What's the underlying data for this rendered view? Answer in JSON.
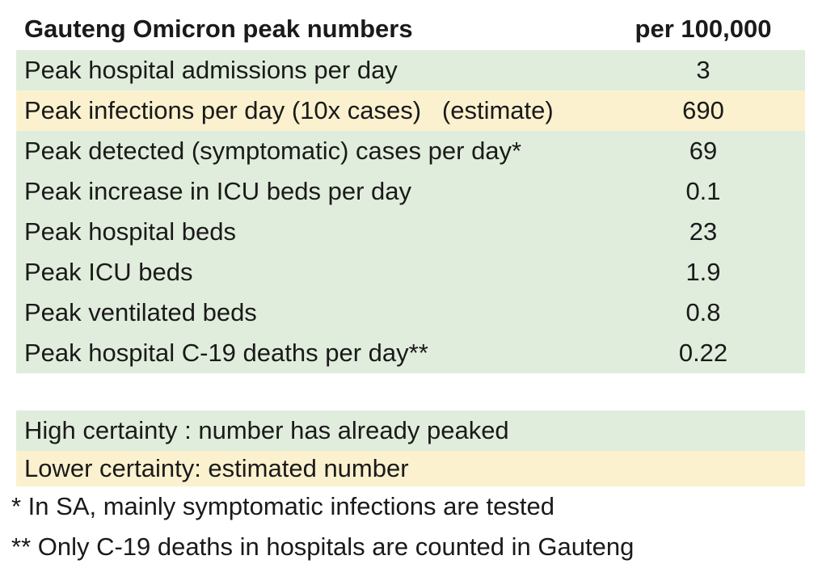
{
  "colors": {
    "row_green": "#e1eddc",
    "row_yellow": "#fbf1cf",
    "text": "#1a1a1a",
    "background": "#ffffff"
  },
  "table": {
    "header": {
      "label": "Gauteng Omicron peak numbers",
      "unit": "per 100,000"
    },
    "rows": [
      {
        "label": "Peak hospital admissions per day",
        "value": "3",
        "certainty": "high"
      },
      {
        "label": "Peak infections per day (10x cases)   (estimate)",
        "value": "690",
        "certainty": "lower"
      },
      {
        "label": "Peak detected (symptomatic) cases per day*",
        "value": "69",
        "certainty": "high"
      },
      {
        "label": "Peak increase in ICU beds per day",
        "value": "0.1",
        "certainty": "high"
      },
      {
        "label": "Peak hospital beds",
        "value": "23",
        "certainty": "high"
      },
      {
        "label": "Peak ICU beds",
        "value": "1.9",
        "certainty": "high"
      },
      {
        "label": "Peak ventilated beds",
        "value": "0.8",
        "certainty": "high"
      },
      {
        "label": "Peak hospital C-19 deaths per day**",
        "value": "0.22",
        "certainty": "high"
      }
    ]
  },
  "legend": {
    "high": "High certainty : number has already peaked",
    "lower": "Lower certainty: estimated number"
  },
  "footnotes": [
    "* In SA, mainly symptomatic infections are tested",
    "** Only C-19 deaths in hospitals are counted in Gauteng"
  ],
  "chart_data": {
    "type": "table",
    "title": "Gauteng Omicron peak numbers",
    "columns": [
      "Gauteng Omicron peak numbers",
      "per 100,000"
    ],
    "rows": [
      [
        "Peak hospital admissions per day",
        3
      ],
      [
        "Peak infections per day (10x cases) (estimate)",
        690
      ],
      [
        "Peak detected (symptomatic) cases per day*",
        69
      ],
      [
        "Peak increase in ICU beds per day",
        0.1
      ],
      [
        "Peak hospital beds",
        23
      ],
      [
        "Peak ICU beds",
        1.9
      ],
      [
        "Peak ventilated beds",
        0.8
      ],
      [
        "Peak hospital C-19 deaths per day**",
        0.22
      ]
    ],
    "row_certainty": [
      "high",
      "lower",
      "high",
      "high",
      "high",
      "high",
      "high",
      "high"
    ],
    "legend": [
      {
        "color": "#e1eddc",
        "label": "High certainty : number has already peaked"
      },
      {
        "color": "#fbf1cf",
        "label": "Lower certainty: estimated number"
      }
    ],
    "footnotes": [
      "* In SA, mainly symptomatic infections are tested",
      "** Only C-19 deaths in hospitals are counted in Gauteng"
    ]
  }
}
